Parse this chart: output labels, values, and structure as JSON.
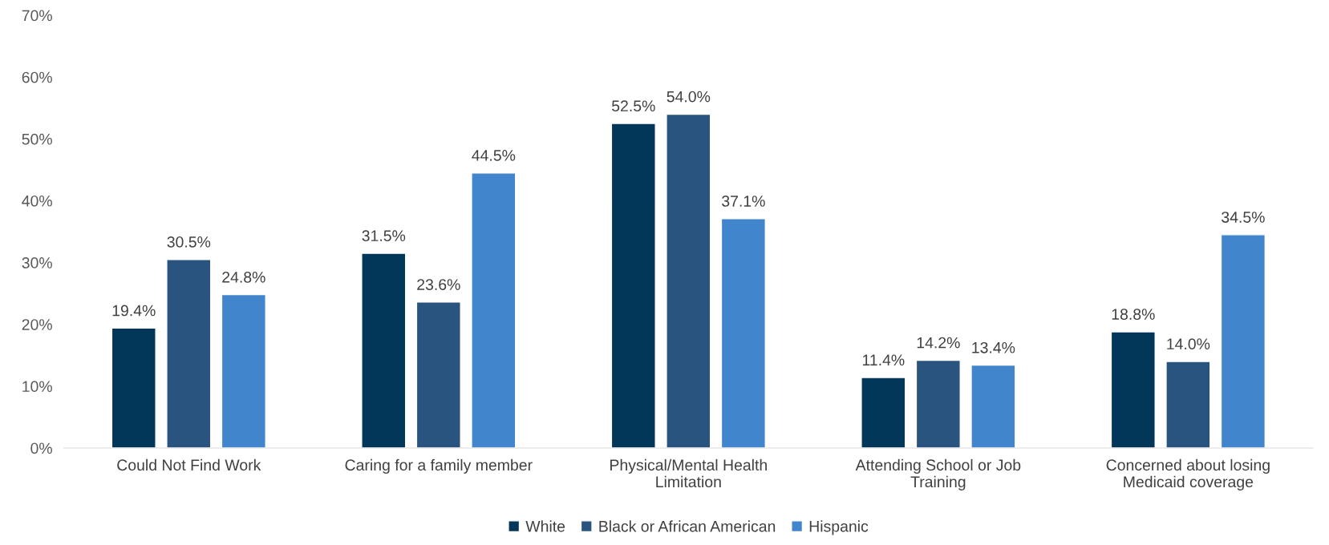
{
  "chart_data": {
    "type": "bar",
    "categories": [
      "Could Not Find Work",
      "Caring for a family member",
      "Physical/Mental Health\nLimitation",
      "Attending School or Job\nTraining",
      "Concerned about losing\nMedicaid coverage"
    ],
    "series": [
      {
        "name": "White",
        "color": "#03375a",
        "values": [
          19.4,
          31.5,
          52.5,
          11.4,
          18.8
        ],
        "value_labels": [
          "19.4%",
          "31.5%",
          "52.5%",
          "11.4%",
          "18.8%"
        ]
      },
      {
        "name": "Black or African American",
        "color": "#2a5480",
        "values": [
          30.5,
          23.6,
          54.0,
          14.2,
          14.0
        ],
        "value_labels": [
          "30.5%",
          "23.6%",
          "54.0%",
          "14.2%",
          "14.0%"
        ]
      },
      {
        "name": "Hispanic",
        "color": "#4186cc",
        "values": [
          24.8,
          44.5,
          37.1,
          13.4,
          34.5
        ],
        "value_labels": [
          "24.8%",
          "44.5%",
          "37.1%",
          "13.4%",
          "34.5%"
        ]
      }
    ],
    "ylim": [
      0,
      70
    ],
    "yticks": [
      {
        "value": 0,
        "label": "0%"
      },
      {
        "value": 10,
        "label": "10%"
      },
      {
        "value": 20,
        "label": "20%"
      },
      {
        "value": 30,
        "label": "30%"
      },
      {
        "value": 40,
        "label": "40%"
      },
      {
        "value": 50,
        "label": "50%"
      },
      {
        "value": 60,
        "label": "60%"
      },
      {
        "value": 70,
        "label": "70%"
      }
    ],
    "grid": false,
    "legend": "bottom"
  }
}
